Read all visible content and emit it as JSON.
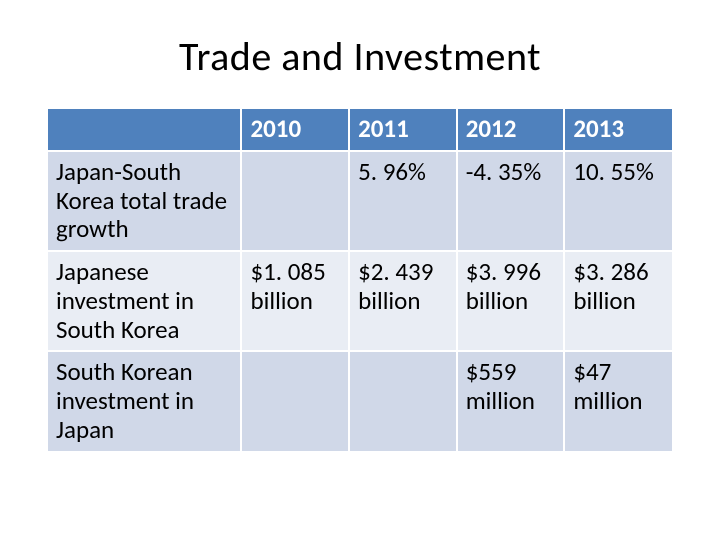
{
  "title": "Trade and Investment",
  "table": {
    "type": "table",
    "header_bg": "#4f81bd",
    "header_fg": "#ffffff",
    "band_a_bg": "#d0d8e8",
    "band_b_bg": "#e9edf4",
    "border_color": "#ffffff",
    "font_size_pt": 19,
    "columns": [
      "",
      "2010",
      "2011",
      "2012",
      "2013"
    ],
    "rows": [
      {
        "label": "Japan-South Korea total trade growth",
        "cells": [
          "",
          "5. 96%",
          "-4. 35%",
          "10. 55%"
        ]
      },
      {
        "label": "Japanese investment in South Korea",
        "cells": [
          "$1. 085 billion",
          "$2. 439 billion",
          "$3. 996 billion",
          "$3. 286 billion"
        ]
      },
      {
        "label": "South Korean investment in Japan",
        "cells": [
          "",
          "",
          "$559 million",
          "$47 million"
        ]
      }
    ]
  }
}
